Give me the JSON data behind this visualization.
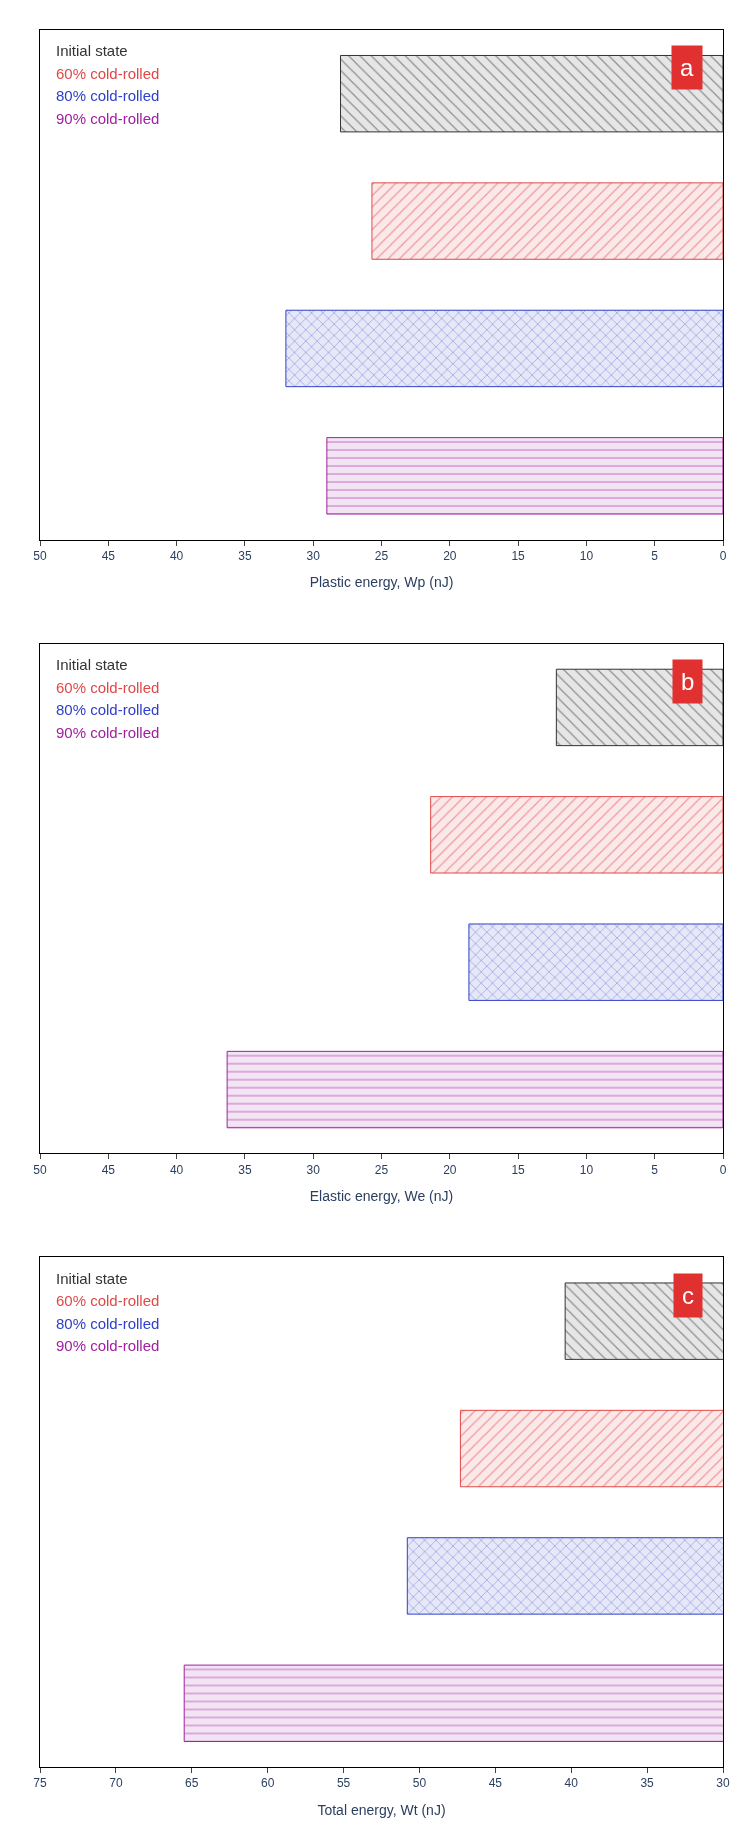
{
  "chart_data": [
    {
      "type": "bar",
      "orientation": "horizontal",
      "xlabel": "Plastic energy, Wp (nJ)",
      "categories": [
        null,
        null,
        null,
        null
      ],
      "xlim": [
        50,
        0
      ],
      "xticks": [
        0,
        5,
        10,
        15,
        20,
        25,
        30,
        35,
        40,
        45,
        50
      ],
      "tick_labels": "x",
      "legend": "top left",
      "annotations": [
        "a"
      ],
      "series": [
        {
          "name": "Initial state",
          "color": "#333333",
          "values": [
            28.0,
            null,
            null,
            null
          ]
        },
        {
          "name": "60% cold-rolled",
          "color": "#e04848",
          "values": [
            null,
            25.7,
            null,
            null
          ]
        },
        {
          "name": "80% cold-rolled",
          "color": "#3040c8",
          "values": [
            null,
            null,
            32.0,
            null
          ]
        },
        {
          "name": "90% cold-rolled",
          "color": "#a020a0",
          "values": [
            null,
            null,
            null,
            29.0
          ]
        }
      ]
    },
    {
      "type": "bar",
      "orientation": "horizontal",
      "xlabel": "Elastic energy, We (nJ)",
      "categories": [
        null,
        null,
        null,
        null
      ],
      "xlim": [
        50,
        0
      ],
      "xticks": [
        0,
        5,
        10,
        15,
        20,
        25,
        30,
        35,
        40,
        45,
        50
      ],
      "tick_labels": "x",
      "legend": "top left",
      "annotations": [
        "b"
      ],
      "series": [
        {
          "name": "Initial state",
          "color": "#333333",
          "values": [
            12.2,
            null,
            null,
            null
          ]
        },
        {
          "name": "60% cold-rolled",
          "color": "#e04848",
          "values": [
            null,
            21.4,
            null,
            null
          ]
        },
        {
          "name": "80% cold-rolled",
          "color": "#3040c8",
          "values": [
            null,
            null,
            18.6,
            null
          ]
        },
        {
          "name": "90% cold-rolled",
          "color": "#a020a0",
          "values": [
            null,
            null,
            null,
            36.3
          ]
        }
      ]
    },
    {
      "type": "bar",
      "orientation": "horizontal",
      "xlabel": "Total energy, Wt (nJ)",
      "categories": [
        null,
        null,
        null,
        null
      ],
      "xlim": [
        75,
        30
      ],
      "xticks": [
        30,
        35,
        40,
        45,
        50,
        55,
        60,
        65,
        70,
        75
      ],
      "tick_labels": "x",
      "legend": "top left",
      "annotations": [
        "c"
      ],
      "series": [
        {
          "name": "Initial state",
          "color": "#333333",
          "values": [
            40.4,
            null,
            null,
            null
          ]
        },
        {
          "name": "60% cold-rolled",
          "color": "#e04848",
          "values": [
            null,
            47.3,
            null,
            null
          ]
        },
        {
          "name": "80% cold-rolled",
          "color": "#3040c8",
          "values": [
            null,
            null,
            50.8,
            null
          ]
        },
        {
          "name": "90% cold-rolled",
          "color": "#a020a0",
          "values": [
            null,
            null,
            null,
            65.5
          ]
        }
      ]
    }
  ]
}
